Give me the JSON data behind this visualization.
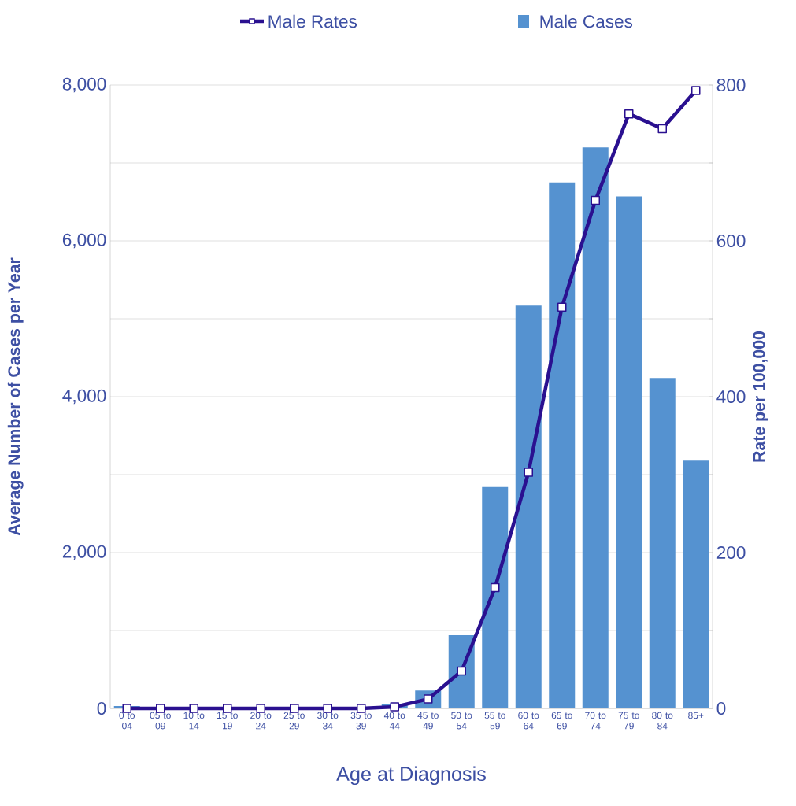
{
  "chart_data": {
    "type": "bar",
    "categories": [
      "0 to 04",
      "05 to 09",
      "10 to 14",
      "15 to 19",
      "20 to 24",
      "25 to 29",
      "30 to 34",
      "35 to 39",
      "40 to 44",
      "45 to 49",
      "50 to 54",
      "55 to 59",
      "60 to 64",
      "65 to 69",
      "70 to 74",
      "75 to 79",
      "80 to 84",
      "85+"
    ],
    "series": [
      {
        "name": "Male Rates",
        "type": "line",
        "axis": "y2",
        "color": "#2a1090",
        "values": [
          0,
          0,
          0,
          0,
          0,
          0,
          0,
          0,
          2,
          12,
          48,
          155,
          303,
          515,
          652,
          763,
          744,
          793
        ]
      },
      {
        "name": "Male Cases",
        "color": "#5592d0",
        "values": [
          30,
          null,
          null,
          null,
          null,
          null,
          null,
          null,
          60,
          230,
          940,
          2840,
          5170,
          6750,
          7200,
          6570,
          4240,
          3180
        ]
      }
    ],
    "xlabel": "Age at Diagnosis",
    "ylabel": "Average Number of Cases per Year",
    "y2label": "Rate per 100,000",
    "ylim": [
      0,
      8000
    ],
    "yticks": [
      {
        "value": 0,
        "label": "0"
      },
      {
        "value": 1000,
        "label": null
      },
      {
        "value": 2000,
        "label": "2,000"
      },
      {
        "value": 3000,
        "label": null
      },
      {
        "value": 4000,
        "label": "4,000"
      },
      {
        "value": 5000,
        "label": null
      },
      {
        "value": 6000,
        "label": "6,000"
      },
      {
        "value": 7000,
        "label": null
      },
      {
        "value": 8000,
        "label": "8,000"
      }
    ],
    "y2lim": [
      0,
      800
    ],
    "y2ticks": [
      0,
      {
        "value": 100,
        "label": null
      },
      200,
      {
        "value": 300,
        "label": null
      },
      400,
      {
        "value": 500,
        "label": null
      },
      600,
      {
        "value": 700,
        "label": null
      },
      800
    ],
    "grid": "y",
    "legend": "top",
    "marker": "square",
    "line_style": "solid"
  }
}
